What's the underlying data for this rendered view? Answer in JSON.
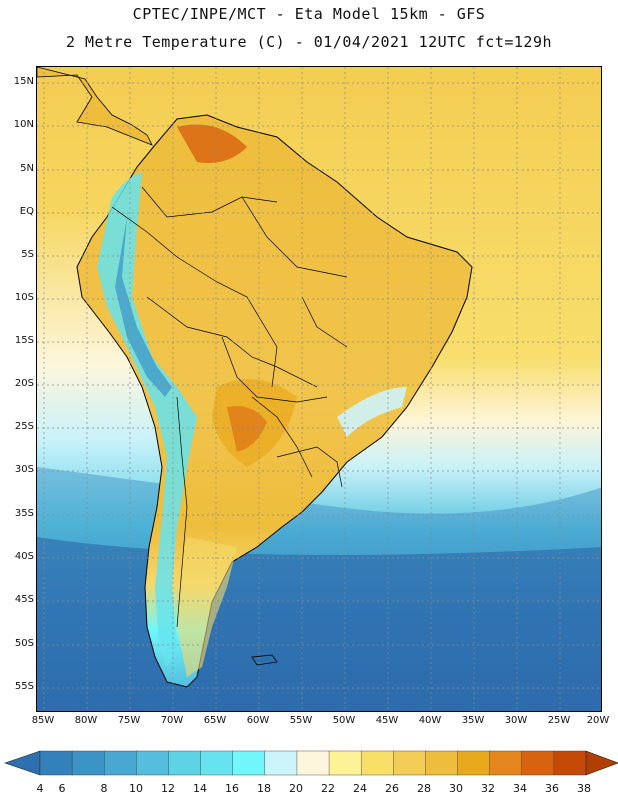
{
  "header": {
    "line1": "CPTEC/INPE/MCT -  Eta Model 15km - GFS",
    "line2": "2 Metre Temperature (C) - 01/04/2021 12UTC fct=129h"
  },
  "map": {
    "lat_labels": [
      "15N",
      "10N",
      "5N",
      "EQ",
      "5S",
      "10S",
      "15S",
      "20S",
      "25S",
      "30S",
      "35S",
      "40S",
      "45S",
      "50S",
      "55S"
    ],
    "lon_labels": [
      "85W",
      "80W",
      "75W",
      "70W",
      "65W",
      "60W",
      "55W",
      "50W",
      "45W",
      "40W",
      "35W",
      "30W",
      "25W",
      "20W"
    ]
  },
  "colorbar": {
    "labels": [
      "4",
      "6",
      "8",
      "10",
      "12",
      "14",
      "16",
      "18",
      "20",
      "22",
      "24",
      "26",
      "28",
      "30",
      "32",
      "34",
      "36",
      "38"
    ],
    "colors": [
      "#2e6fae",
      "#3480ba",
      "#3b93c6",
      "#48a8d2",
      "#55bede",
      "#5ed3e6",
      "#66e3ee",
      "#6ff7fb",
      "#cdf3fb",
      "#fdf6dc",
      "#fdf296",
      "#f8df68",
      "#f3cd55",
      "#eebd3c",
      "#e9a91d",
      "#e4861d",
      "#d9620f",
      "#c54a06",
      "#b13e02"
    ]
  }
}
